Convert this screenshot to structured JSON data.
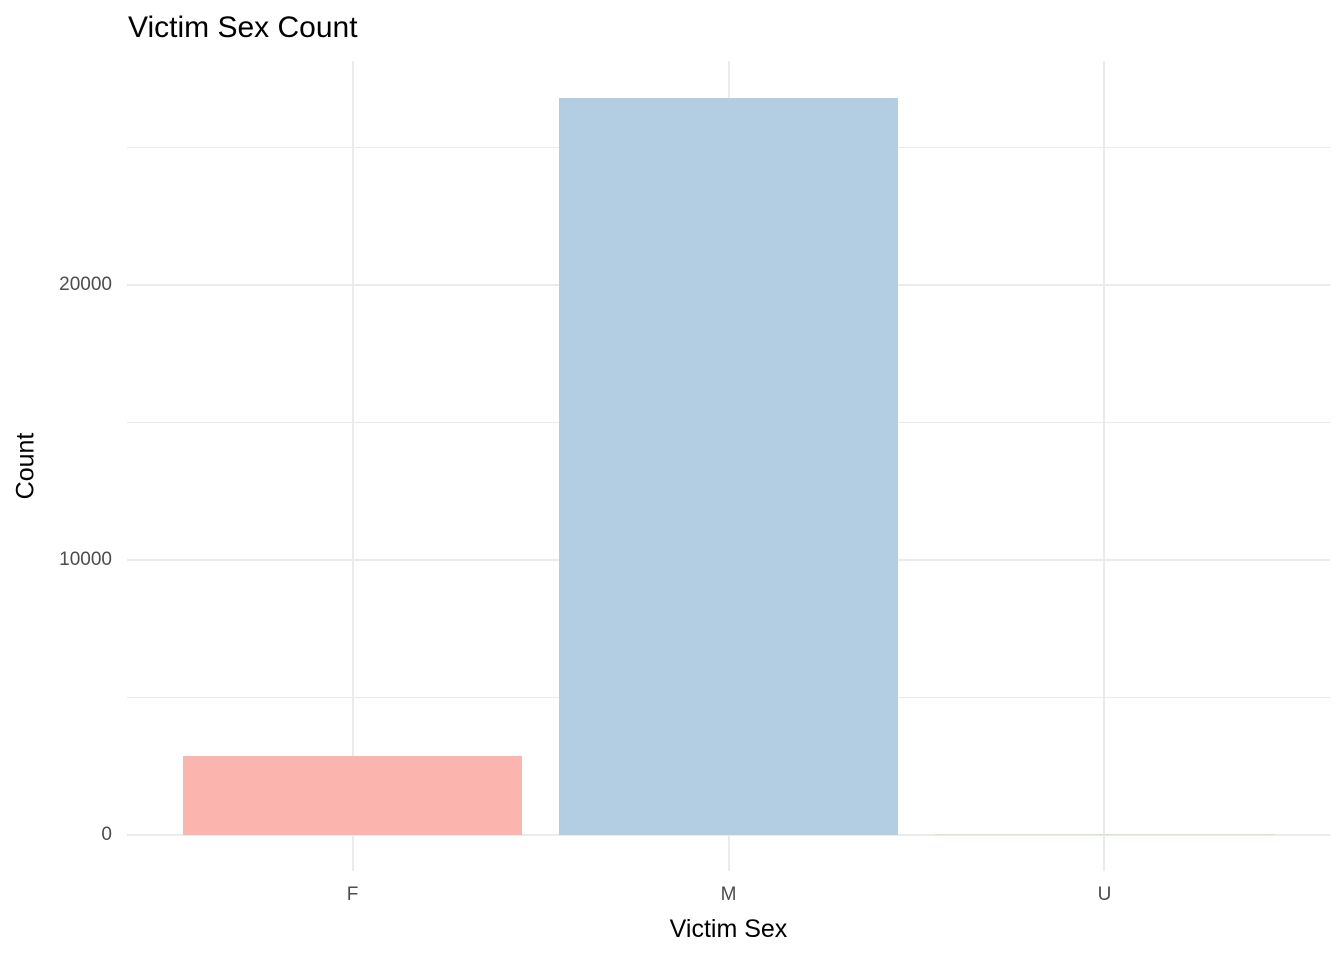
{
  "chart_data": {
    "type": "bar",
    "title": "Victim Sex Count",
    "xlabel": "Victim Sex",
    "ylabel": "Count",
    "categories": [
      "F",
      "M",
      "U"
    ],
    "values": [
      2870,
      26800,
      50
    ],
    "bar_colors": [
      "#FBB4AE",
      "#B3CDE3",
      "#CCEBC5"
    ],
    "y_ticks": [
      0,
      10000,
      20000
    ],
    "y_tick_labels": [
      "0",
      "10000",
      "20000"
    ],
    "y_minor_ticks": [
      5000,
      15000,
      25000
    ],
    "ylim": [
      -1300,
      28160
    ],
    "grid": true,
    "legend": false,
    "background_color": "#FFFFFF",
    "grid_color": "#EBEBEB",
    "tick_label_color": "#4D4D4D",
    "axis_title_color": "#000000",
    "title_color": "#000000"
  }
}
